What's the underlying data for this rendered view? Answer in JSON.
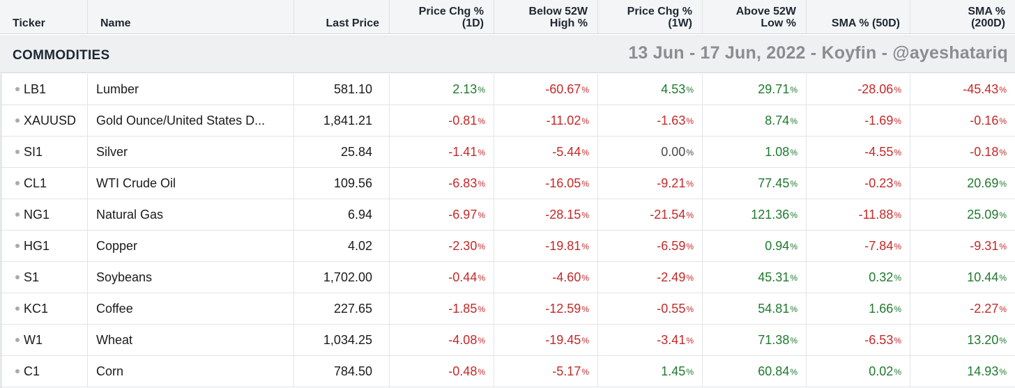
{
  "columns": [
    {
      "label": "Ticker",
      "align": "left"
    },
    {
      "label": "Name",
      "align": "left"
    },
    {
      "label": "Last Price",
      "align": "right"
    },
    {
      "label": "Price Chg %\n(1D)",
      "align": "right"
    },
    {
      "label": "Below 52W\nHigh %",
      "align": "right"
    },
    {
      "label": "Price Chg %\n(1W)",
      "align": "right"
    },
    {
      "label": "Above 52W\nLow %",
      "align": "right"
    },
    {
      "label": "SMA % (50D)",
      "align": "right"
    },
    {
      "label": "SMA %\n(200D)",
      "align": "right"
    }
  ],
  "section": {
    "title": "COMMODITIES",
    "watermark": "13 Jun - 17 Jun, 2022 - Koyfin - @ayeshatariq"
  },
  "percent_unit": "%",
  "colors": {
    "positive": "#1f7a2e",
    "negative": "#c62828",
    "zero": "#4a4a4a"
  },
  "rows": [
    {
      "ticker": "LB1",
      "name": "Lumber",
      "last": "581.10",
      "values": [
        "2.13",
        "-60.67",
        "4.53",
        "29.71",
        "-28.06",
        "-45.43"
      ]
    },
    {
      "ticker": "XAUUSD",
      "name": "Gold Ounce/United States D...",
      "last": "1,841.21",
      "values": [
        "-0.81",
        "-11.02",
        "-1.63",
        "8.74",
        "-1.69",
        "-0.16"
      ]
    },
    {
      "ticker": "SI1",
      "name": "Silver",
      "last": "25.84",
      "values": [
        "-1.41",
        "-5.44",
        "0.00",
        "1.08",
        "-4.55",
        "-0.18"
      ]
    },
    {
      "ticker": "CL1",
      "name": "WTI Crude Oil",
      "last": "109.56",
      "values": [
        "-6.83",
        "-16.05",
        "-9.21",
        "77.45",
        "-0.23",
        "20.69"
      ]
    },
    {
      "ticker": "NG1",
      "name": "Natural Gas",
      "last": "6.94",
      "values": [
        "-6.97",
        "-28.15",
        "-21.54",
        "121.36",
        "-11.88",
        "25.09"
      ]
    },
    {
      "ticker": "HG1",
      "name": "Copper",
      "last": "4.02",
      "values": [
        "-2.30",
        "-19.81",
        "-6.59",
        "0.94",
        "-7.84",
        "-9.31"
      ]
    },
    {
      "ticker": "S1",
      "name": "Soybeans",
      "last": "1,702.00",
      "values": [
        "-0.44",
        "-4.60",
        "-2.49",
        "45.31",
        "0.32",
        "10.44"
      ]
    },
    {
      "ticker": "KC1",
      "name": "Coffee",
      "last": "227.65",
      "values": [
        "-1.85",
        "-12.59",
        "-0.55",
        "54.81",
        "1.66",
        "-2.27"
      ]
    },
    {
      "ticker": "W1",
      "name": "Wheat",
      "last": "1,034.25",
      "values": [
        "-4.08",
        "-19.45",
        "-3.41",
        "71.38",
        "-6.53",
        "13.20"
      ]
    },
    {
      "ticker": "C1",
      "name": "Corn",
      "last": "784.50",
      "values": [
        "-0.48",
        "-5.17",
        "1.45",
        "60.84",
        "0.02",
        "14.93"
      ]
    }
  ]
}
